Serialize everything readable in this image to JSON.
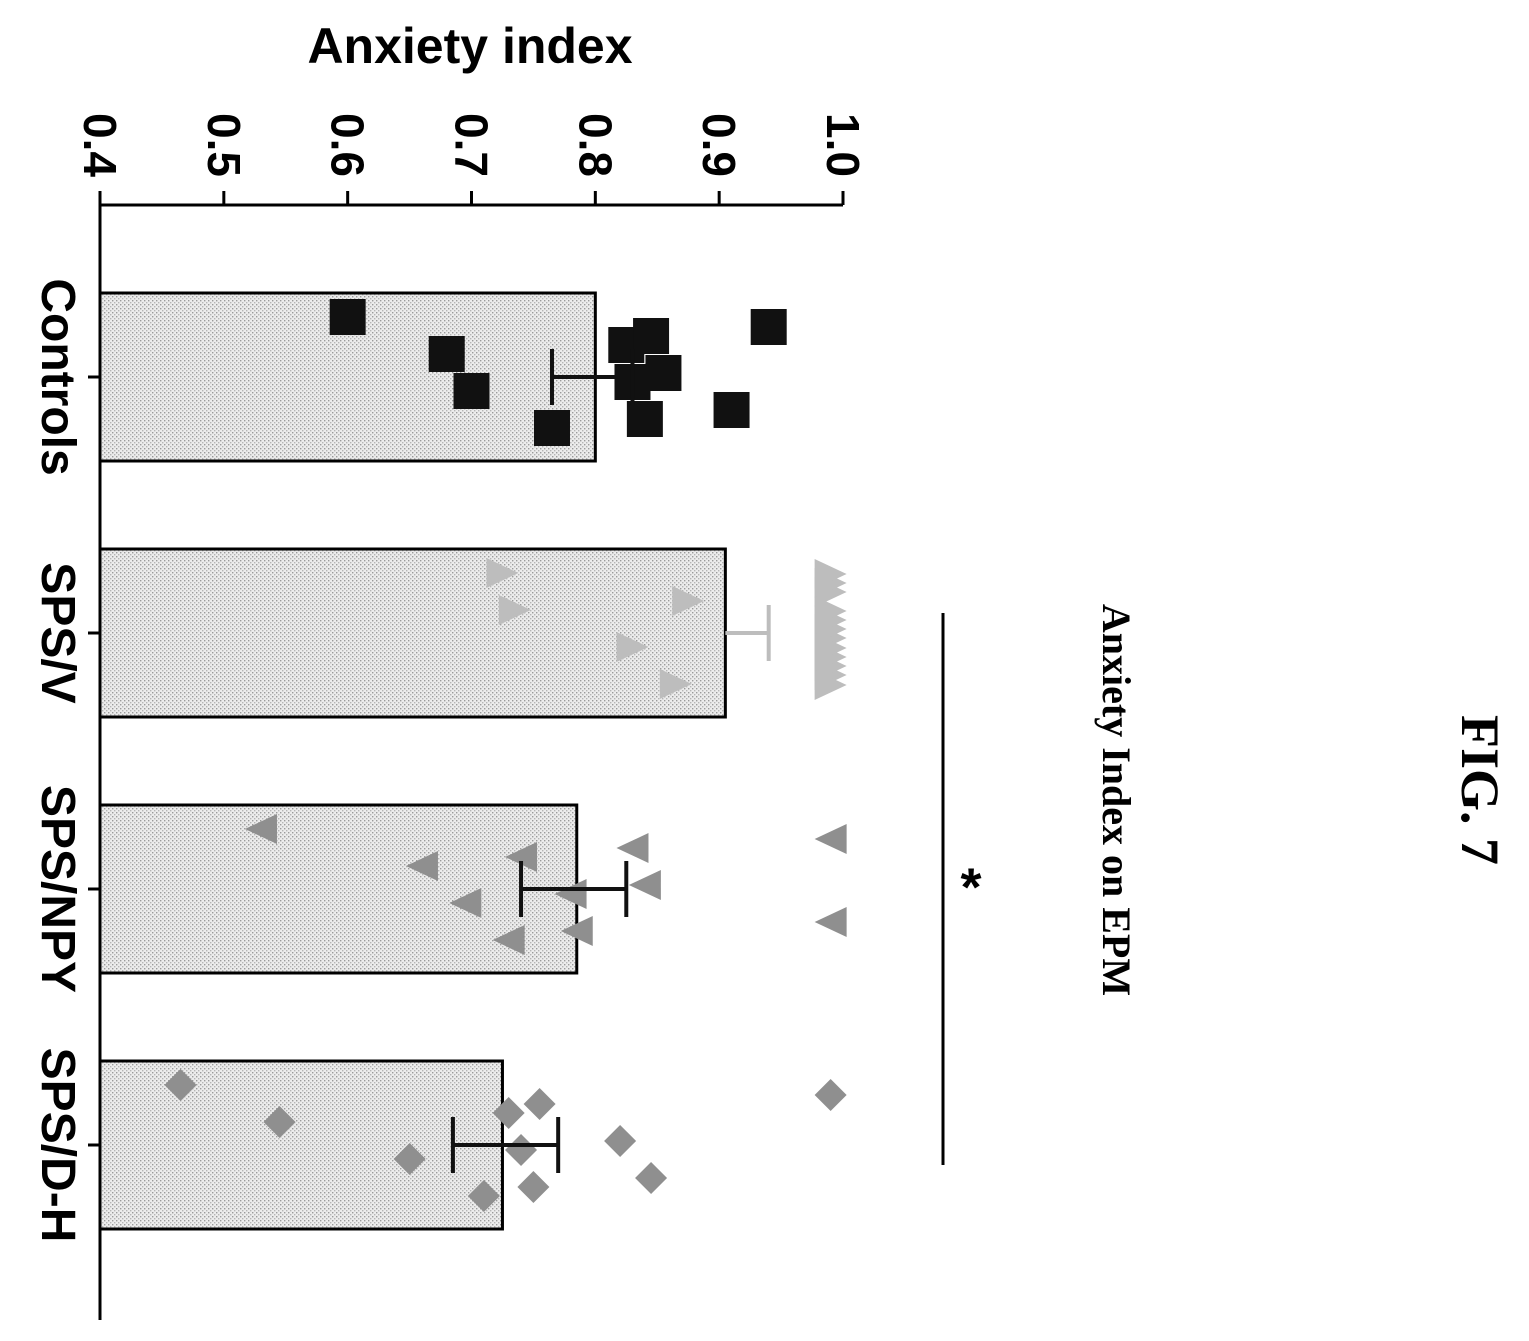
{
  "figure_label": "FIG. 7",
  "chart_data": {
    "type": "bar",
    "orientation": "rotated 90° clockwise (bars extend rightward from y-axis at left)",
    "title": "Anxiety Index on EPM",
    "ylabel": "Anxiety index",
    "xlabel": "",
    "ylim": [
      0.4,
      1.0
    ],
    "yticks": [
      "0.4",
      "0.5",
      "0.6",
      "0.7",
      "0.8",
      "0.9",
      "1.0"
    ],
    "categories": [
      "Controls",
      "SPS/V",
      "SPS/NPY",
      "SPS/D-H"
    ],
    "values": [
      0.8,
      0.905,
      0.785,
      0.725
    ],
    "error_low": [
      0.765,
      0.905,
      0.74,
      0.685
    ],
    "error_high": [
      0.83,
      0.94,
      0.825,
      0.77
    ],
    "points": [
      [
        0.6,
        0.68,
        0.7,
        0.765,
        0.825,
        0.83,
        0.84,
        0.845,
        0.855,
        0.91,
        0.94
      ],
      [
        0.725,
        0.735,
        0.83,
        0.865,
        0.875,
        0.99,
        0.99,
        0.99,
        0.99,
        0.99,
        0.99,
        0.99,
        0.99,
        0.99,
        0.99,
        0.99,
        0.99
      ],
      [
        0.53,
        0.66,
        0.695,
        0.73,
        0.74,
        0.78,
        0.785,
        0.83,
        0.84,
        0.99,
        0.99
      ],
      [
        0.465,
        0.545,
        0.65,
        0.71,
        0.73,
        0.74,
        0.75,
        0.755,
        0.82,
        0.845,
        0.99
      ]
    ],
    "markers": [
      "square",
      "triangle-up",
      "triangle-down",
      "diamond"
    ],
    "marker_colors": [
      "#111111",
      "#bdbdbd",
      "#8f8f8f",
      "#8f8f8f"
    ],
    "errorbar_colors": [
      "#111111",
      "#bdbdbd",
      "#111111",
      "#111111"
    ],
    "significance": {
      "label": "*",
      "from": "SPS/V",
      "to": "SPS/D-H"
    },
    "grid": false,
    "legend": "none"
  }
}
